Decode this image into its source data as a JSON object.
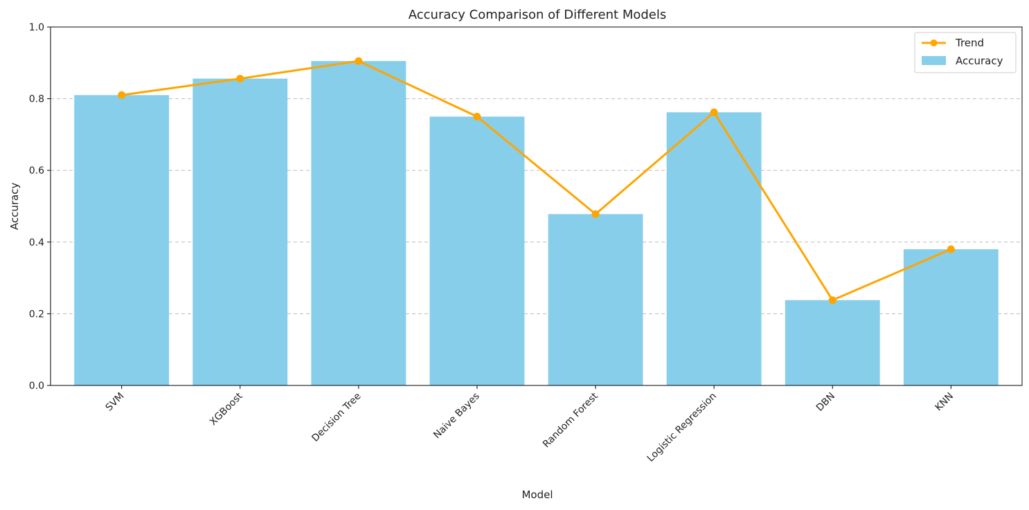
{
  "chart_data": {
    "type": "bar",
    "title": "Accuracy Comparison of Different Models",
    "xlabel": "Model",
    "ylabel": "Accuracy",
    "ylim": [
      0,
      1.0
    ],
    "yticks": [
      "0.0",
      "0.2",
      "0.4",
      "0.6",
      "0.8",
      "1.0"
    ],
    "grid": "horizontal dashed",
    "legend_position": "top-right",
    "categories": [
      "SVM",
      "XGBoost",
      "Decision Tree",
      "Naive Bayes",
      "Random Forest",
      "Logistic Regression",
      "DBN",
      "KNN"
    ],
    "series": [
      {
        "name": "Accuracy",
        "kind": "bar",
        "color": "#87CEEB",
        "values": [
          0.81,
          0.856,
          0.905,
          0.75,
          0.478,
          0.762,
          0.238,
          0.38
        ]
      },
      {
        "name": "Trend",
        "kind": "line",
        "color": "#FFA500",
        "values": [
          0.81,
          0.856,
          0.905,
          0.75,
          0.478,
          0.762,
          0.238,
          0.38
        ]
      }
    ]
  }
}
